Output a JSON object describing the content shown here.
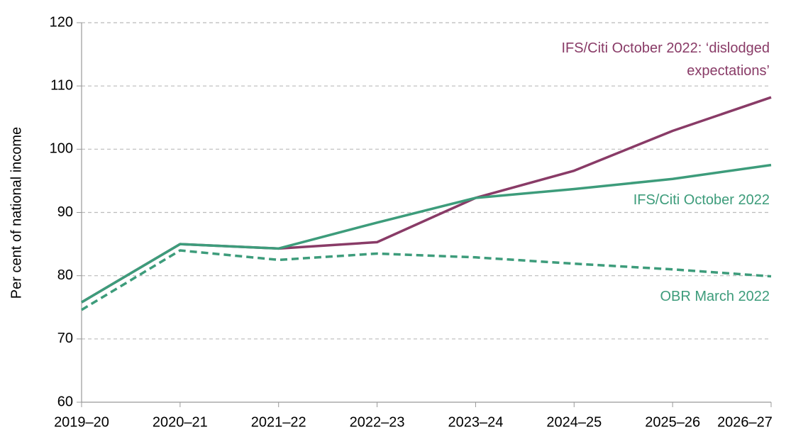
{
  "chart_data": {
    "type": "line",
    "y_label": "Per cent of national income",
    "categories": [
      "2019–20",
      "2020–21",
      "2021–22",
      "2022–23",
      "2023–24",
      "2024–25",
      "2025–26",
      "2026–27"
    ],
    "series": [
      {
        "name": "IFS/Citi October 2022: ‘dislodged expectations’",
        "color": "#893b67",
        "dashed": false,
        "values": [
          75.8,
          85.0,
          84.3,
          85.3,
          92.3,
          96.6,
          102.9,
          108.2
        ]
      },
      {
        "name": "IFS/Citi October 2022",
        "color": "#3d9c7b",
        "dashed": false,
        "values": [
          75.8,
          85.0,
          84.3,
          88.4,
          92.3,
          93.7,
          95.3,
          97.5
        ]
      },
      {
        "name": "OBR March 2022",
        "color": "#3d9c7b",
        "dashed": true,
        "values": [
          74.6,
          84.0,
          82.5,
          83.5,
          82.9,
          81.9,
          81.0,
          79.9
        ]
      }
    ],
    "ylim": [
      60,
      120
    ],
    "yticks": [
      60,
      70,
      80,
      90,
      100,
      110,
      120
    ],
    "grid": true
  }
}
